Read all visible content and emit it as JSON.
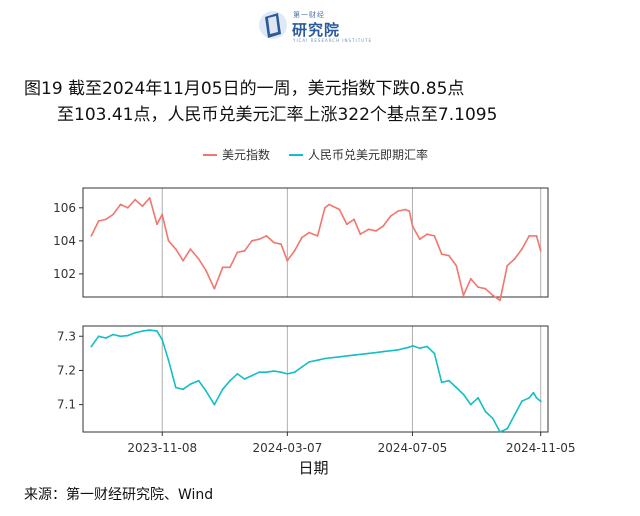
{
  "logo": {
    "small": "第一财经",
    "name": "研究院",
    "tiny": "YICAI RESEARCH INSTITUTE"
  },
  "figure": {
    "title_line1": "图19  截至2024年11月05日的一周，美元指数下跌0.85点",
    "title_line2": "至103.41点，人民币兑美元汇率上涨322个基点至7.1095",
    "source": "来源：第一财经研究院、Wind"
  },
  "colors": {
    "usd_index": "#F2766D",
    "cny_usd": "#13BFC4",
    "vline": "#B0B0B0",
    "frame": "#333333"
  },
  "chart_data": {
    "type": "line",
    "xlabel": "日期",
    "x_ticks": [
      "2023-11-08",
      "2024-03-07",
      "2024-07-05",
      "2024-11-05"
    ],
    "legend_position": "top",
    "grid": false,
    "vertical_reference_lines": [
      "2023-11-08",
      "2024-03-07",
      "2024-07-05",
      "2024-11-05"
    ],
    "panels": [
      {
        "name": "美元指数",
        "y_ticks": [
          102,
          104,
          106
        ],
        "ylim": [
          100.6,
          107.2
        ],
        "series": [
          {
            "name": "美元指数",
            "color": "#F2766D",
            "points": [
              [
                "2023-09-01",
                104.3
              ],
              [
                "2023-09-08",
                105.2
              ],
              [
                "2023-09-15",
                105.3
              ],
              [
                "2023-09-22",
                105.6
              ],
              [
                "2023-09-29",
                106.2
              ],
              [
                "2023-10-06",
                106.0
              ],
              [
                "2023-10-13",
                106.5
              ],
              [
                "2023-10-20",
                106.1
              ],
              [
                "2023-10-27",
                106.6
              ],
              [
                "2023-11-03",
                105.0
              ],
              [
                "2023-11-08",
                105.6
              ],
              [
                "2023-11-14",
                104.0
              ],
              [
                "2023-11-21",
                103.5
              ],
              [
                "2023-11-28",
                102.8
              ],
              [
                "2023-12-05",
                103.5
              ],
              [
                "2023-12-13",
                102.9
              ],
              [
                "2023-12-20",
                102.2
              ],
              [
                "2023-12-28",
                101.1
              ],
              [
                "2024-01-05",
                102.4
              ],
              [
                "2024-01-12",
                102.4
              ],
              [
                "2024-01-19",
                103.3
              ],
              [
                "2024-01-26",
                103.4
              ],
              [
                "2024-02-02",
                104.0
              ],
              [
                "2024-02-09",
                104.1
              ],
              [
                "2024-02-16",
                104.3
              ],
              [
                "2024-02-23",
                103.9
              ],
              [
                "2024-03-01",
                103.8
              ],
              [
                "2024-03-07",
                102.8
              ],
              [
                "2024-03-14",
                103.4
              ],
              [
                "2024-03-21",
                104.2
              ],
              [
                "2024-03-28",
                104.5
              ],
              [
                "2024-04-05",
                104.3
              ],
              [
                "2024-04-12",
                106.0
              ],
              [
                "2024-04-16",
                106.2
              ],
              [
                "2024-04-26",
                105.9
              ],
              [
                "2024-05-03",
                105.0
              ],
              [
                "2024-05-10",
                105.3
              ],
              [
                "2024-05-16",
                104.4
              ],
              [
                "2024-05-24",
                104.7
              ],
              [
                "2024-05-31",
                104.6
              ],
              [
                "2024-06-07",
                104.9
              ],
              [
                "2024-06-14",
                105.5
              ],
              [
                "2024-06-21",
                105.8
              ],
              [
                "2024-06-28",
                105.9
              ],
              [
                "2024-07-02",
                105.8
              ],
              [
                "2024-07-05",
                104.9
              ],
              [
                "2024-07-12",
                104.1
              ],
              [
                "2024-07-19",
                104.4
              ],
              [
                "2024-07-26",
                104.3
              ],
              [
                "2024-08-02",
                103.2
              ],
              [
                "2024-08-09",
                103.1
              ],
              [
                "2024-08-16",
                102.5
              ],
              [
                "2024-08-23",
                100.7
              ],
              [
                "2024-08-30",
                101.7
              ],
              [
                "2024-09-06",
                101.2
              ],
              [
                "2024-09-13",
                101.1
              ],
              [
                "2024-09-20",
                100.7
              ],
              [
                "2024-09-27",
                100.4
              ],
              [
                "2024-10-04",
                102.5
              ],
              [
                "2024-10-11",
                102.9
              ],
              [
                "2024-10-18",
                103.5
              ],
              [
                "2024-10-25",
                104.3
              ],
              [
                "2024-11-01",
                104.3
              ],
              [
                "2024-11-05",
                103.4
              ]
            ]
          }
        ]
      },
      {
        "name": "人民币兑美元即期汇率",
        "y_ticks": [
          7.1,
          7.2,
          7.3
        ],
        "ylim": [
          7.02,
          7.33
        ],
        "series": [
          {
            "name": "人民币兑美元即期汇率",
            "color": "#13BFC4",
            "points": [
              [
                "2023-09-01",
                7.27
              ],
              [
                "2023-09-08",
                7.3
              ],
              [
                "2023-09-15",
                7.295
              ],
              [
                "2023-09-22",
                7.305
              ],
              [
                "2023-09-29",
                7.3
              ],
              [
                "2023-10-06",
                7.302
              ],
              [
                "2023-10-13",
                7.31
              ],
              [
                "2023-10-20",
                7.315
              ],
              [
                "2023-10-27",
                7.318
              ],
              [
                "2023-11-03",
                7.315
              ],
              [
                "2023-11-08",
                7.29
              ],
              [
                "2023-11-14",
                7.23
              ],
              [
                "2023-11-21",
                7.15
              ],
              [
                "2023-11-28",
                7.145
              ],
              [
                "2023-12-05",
                7.16
              ],
              [
                "2023-12-13",
                7.17
              ],
              [
                "2023-12-20",
                7.14
              ],
              [
                "2023-12-28",
                7.1
              ],
              [
                "2024-01-05",
                7.145
              ],
              [
                "2024-01-12",
                7.17
              ],
              [
                "2024-01-19",
                7.19
              ],
              [
                "2024-01-26",
                7.175
              ],
              [
                "2024-02-02",
                7.185
              ],
              [
                "2024-02-09",
                7.195
              ],
              [
                "2024-02-16",
                7.195
              ],
              [
                "2024-02-23",
                7.198
              ],
              [
                "2024-03-01",
                7.195
              ],
              [
                "2024-03-07",
                7.19
              ],
              [
                "2024-03-14",
                7.195
              ],
              [
                "2024-03-21",
                7.21
              ],
              [
                "2024-03-28",
                7.225
              ],
              [
                "2024-04-05",
                7.23
              ],
              [
                "2024-04-12",
                7.235
              ],
              [
                "2024-04-26",
                7.24
              ],
              [
                "2024-05-10",
                7.245
              ],
              [
                "2024-05-24",
                7.25
              ],
              [
                "2024-06-07",
                7.255
              ],
              [
                "2024-06-21",
                7.26
              ],
              [
                "2024-07-02",
                7.268
              ],
              [
                "2024-07-05",
                7.272
              ],
              [
                "2024-07-12",
                7.265
              ],
              [
                "2024-07-19",
                7.27
              ],
              [
                "2024-07-26",
                7.25
              ],
              [
                "2024-08-02",
                7.165
              ],
              [
                "2024-08-09",
                7.17
              ],
              [
                "2024-08-16",
                7.15
              ],
              [
                "2024-08-23",
                7.13
              ],
              [
                "2024-08-30",
                7.1
              ],
              [
                "2024-09-06",
                7.12
              ],
              [
                "2024-09-13",
                7.08
              ],
              [
                "2024-09-20",
                7.06
              ],
              [
                "2024-09-27",
                7.02
              ],
              [
                "2024-10-04",
                7.03
              ],
              [
                "2024-10-11",
                7.07
              ],
              [
                "2024-10-18",
                7.11
              ],
              [
                "2024-10-25",
                7.12
              ],
              [
                "2024-10-29",
                7.135
              ],
              [
                "2024-11-01",
                7.12
              ],
              [
                "2024-11-05",
                7.1095
              ]
            ]
          }
        ]
      }
    ]
  }
}
